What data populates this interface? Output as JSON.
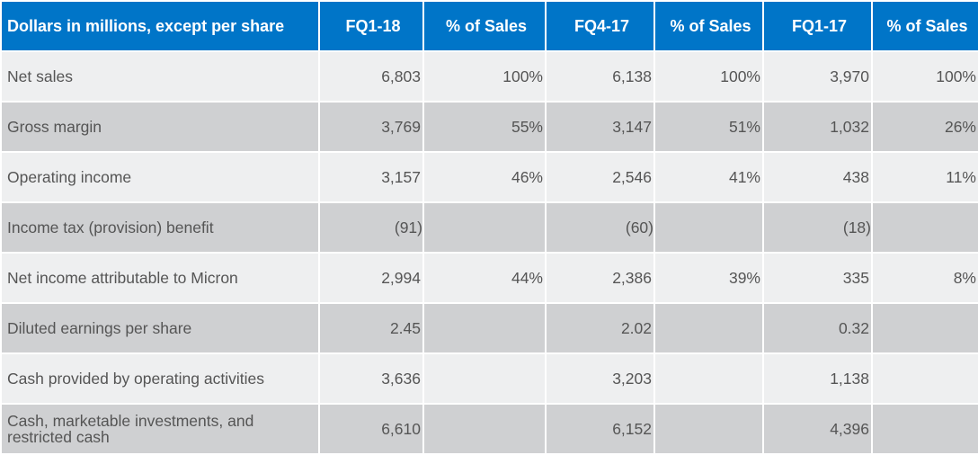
{
  "table": {
    "columns": [
      "Dollars in millions, except per share",
      "FQ1-18",
      "% of Sales",
      "FQ4-17",
      "% of Sales",
      "FQ1-17",
      "% of Sales"
    ],
    "rows": [
      [
        "Net sales",
        "6,803",
        "100%",
        "6,138",
        "100%",
        "3,970",
        "100%"
      ],
      [
        "Gross margin",
        "3,769",
        "55%",
        "3,147",
        "51%",
        "1,032",
        "26%"
      ],
      [
        "Operating income",
        "3,157",
        "46%",
        "2,546",
        "41%",
        "438",
        "11%"
      ],
      [
        "Income tax (provision) benefit",
        "(91)",
        "",
        "(60)",
        "",
        "(18)",
        ""
      ],
      [
        "Net income attributable to Micron",
        "2,994",
        "44%",
        "2,386",
        "39%",
        "335",
        "8%"
      ],
      [
        "Diluted earnings per share",
        "2.45",
        "",
        "2.02",
        "",
        "0.32",
        ""
      ],
      [
        "Cash provided by operating activities",
        "3,636",
        "",
        "3,203",
        "",
        "1,138",
        ""
      ],
      [
        "Cash, marketable investments, and restricted cash",
        "6,610",
        "",
        "6,152",
        "",
        "4,396",
        ""
      ]
    ]
  },
  "colors": {
    "header_bg": "#0075c8",
    "row_light": "#eeeff0",
    "row_dark": "#cfd0d2",
    "text": "#555555"
  }
}
